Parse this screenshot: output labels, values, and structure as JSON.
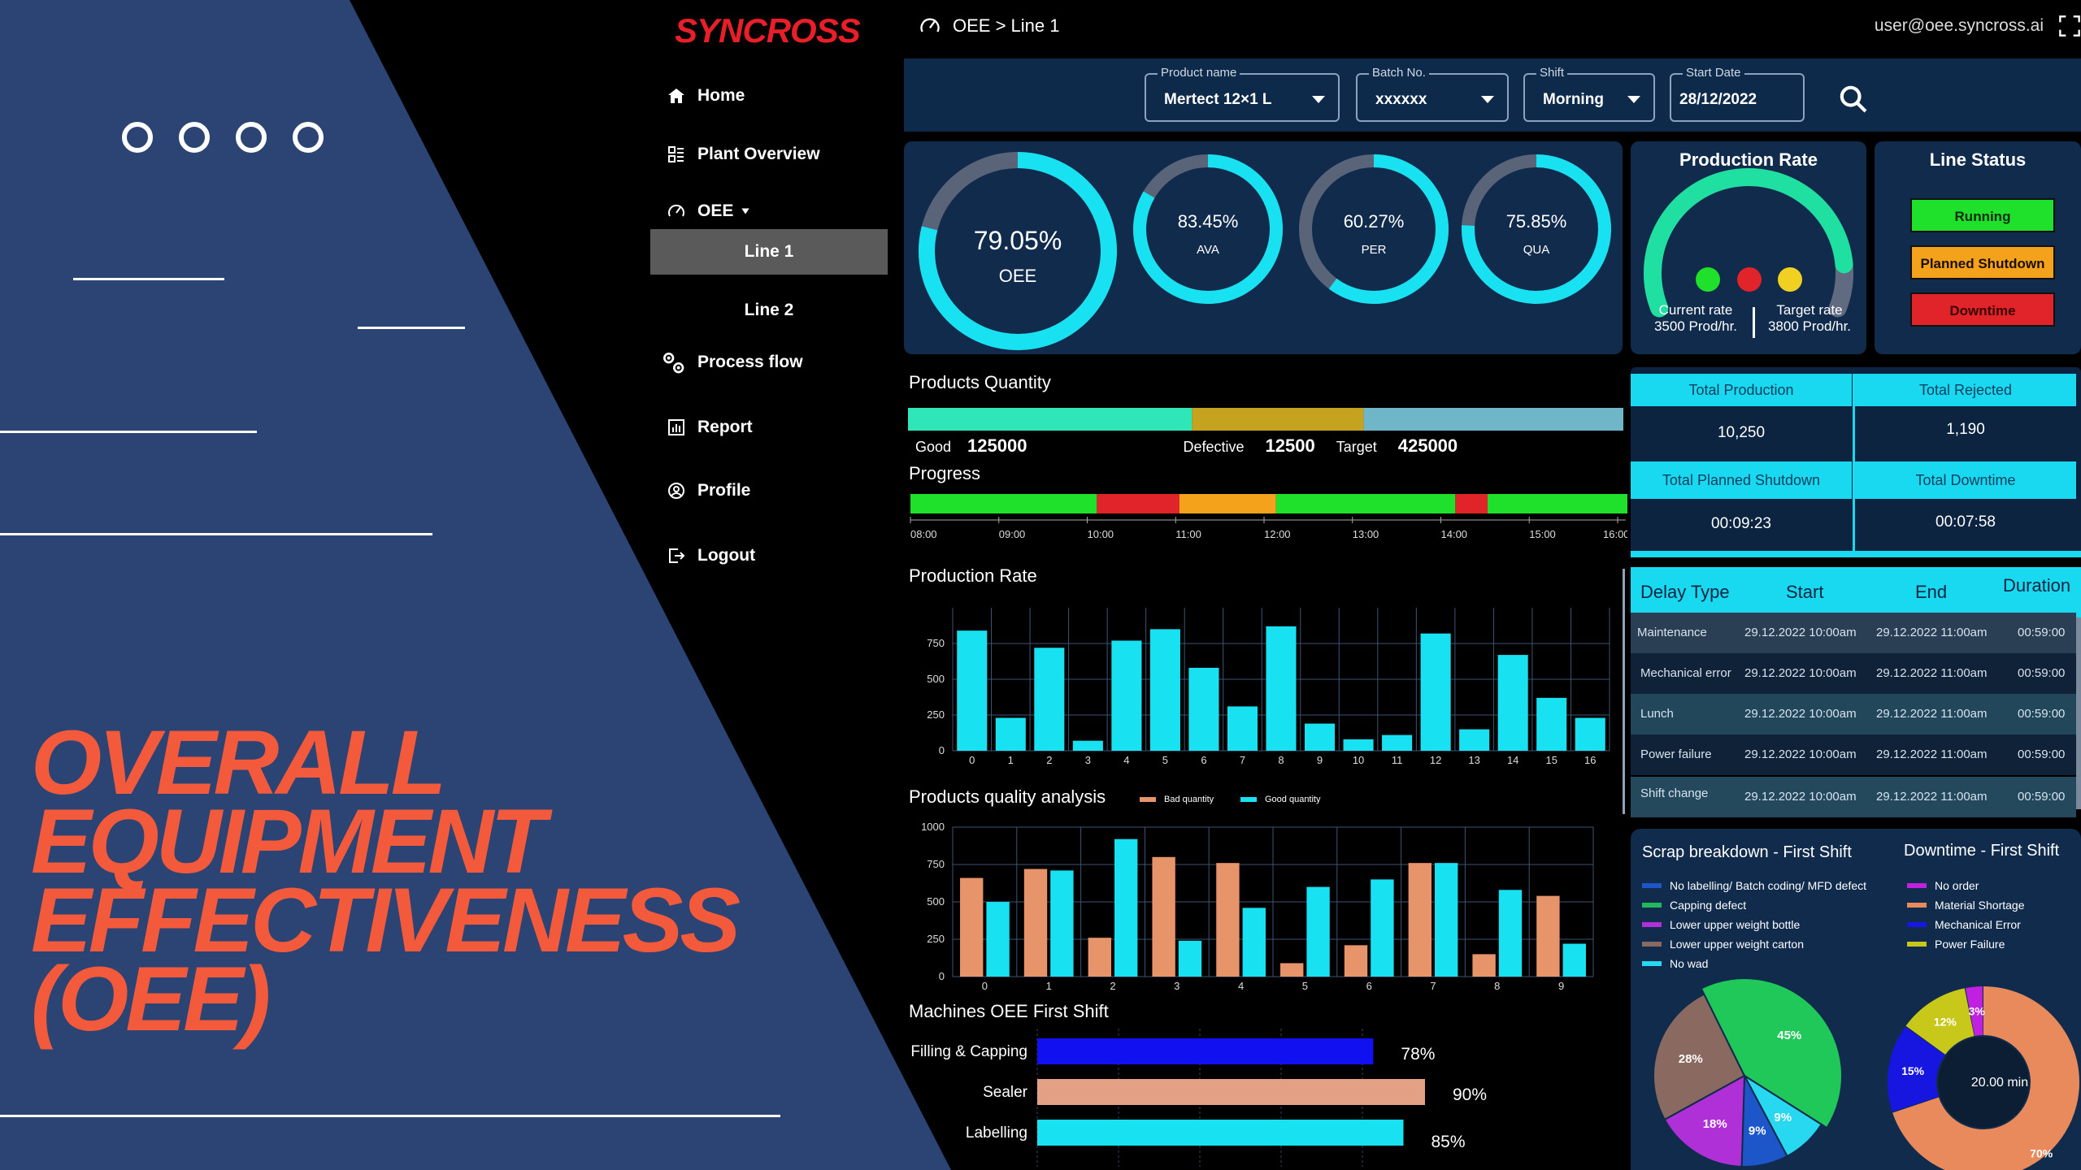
{
  "promo": {
    "title_lines": [
      "OVERALL",
      "EQUIPMENT",
      "EFFECTIVENESS",
      "(OEE)"
    ]
  },
  "brand": {
    "logo_text": "SYNCROSS"
  },
  "sidebar": {
    "items": [
      {
        "label": "Home",
        "icon": "home-icon"
      },
      {
        "label": "Plant Overview",
        "icon": "grid-icon"
      },
      {
        "label": "OEE",
        "icon": "gauge-icon"
      },
      {
        "label": "Process flow",
        "icon": "gears-icon"
      },
      {
        "label": "Report",
        "icon": "chart-icon"
      },
      {
        "label": "Profile",
        "icon": "user-icon"
      },
      {
        "label": "Logout",
        "icon": "logout-icon"
      }
    ],
    "sub_items": [
      "Line 1",
      "Line 2"
    ]
  },
  "header": {
    "breadcrumb": "OEE > Line 1",
    "user_email": "user@oee.syncross.ai"
  },
  "filters": {
    "product": {
      "label": "Product name",
      "value": "Mertect 12×1 L"
    },
    "batch": {
      "label": "Batch No.",
      "value": "xxxxxx"
    },
    "shift": {
      "label": "Shift",
      "value": "Morning"
    },
    "start_date": {
      "label": "Start Date",
      "value": "28/12/2022"
    }
  },
  "kpis": [
    {
      "value": "79.05%",
      "label": "OEE",
      "fraction": 0.7905
    },
    {
      "value": "83.45%",
      "label": "AVA",
      "fraction": 0.8345
    },
    {
      "value": "60.27%",
      "label": "PER",
      "fraction": 0.6027
    },
    {
      "value": "75.85%",
      "label": "QUA",
      "fraction": 0.7585
    }
  ],
  "production_rate": {
    "title": "Production Rate",
    "current_label": "Current rate",
    "current_value": "3500 Prod/hr.",
    "target_label": "Target rate",
    "target_value": "3800 Prod/hr.",
    "fraction": 0.88
  },
  "line_status": {
    "title": "Line Status",
    "items": [
      {
        "label": "Running",
        "color": "#1fe02a"
      },
      {
        "label": "Planned Shutdown",
        "color": "#f4a11c"
      },
      {
        "label": "Downtime",
        "color": "#e0242a"
      }
    ]
  },
  "quantity": {
    "title": "Products Quantity",
    "good_label": "Good",
    "good_value": "125000",
    "defective_label": "Defective",
    "defective_value": "12500",
    "target_label": "Target",
    "target_value": "425000",
    "segments": [
      {
        "fraction": 0.397,
        "color": "#2fe6b8"
      },
      {
        "fraction": 0.24,
        "color": "#c6a31e"
      },
      {
        "fraction": 0.363,
        "color": "#6fb6c8"
      }
    ]
  },
  "progress": {
    "title": "Progress",
    "ticks": [
      "08:00",
      "09:00",
      "10:00",
      "11:00",
      "12:00",
      "13:00",
      "14:00",
      "15:00",
      "16:00"
    ],
    "segments": [
      {
        "fraction": 0.26,
        "color": "#1fe02a"
      },
      {
        "fraction": 0.115,
        "color": "#e0242a"
      },
      {
        "fraction": 0.135,
        "color": "#f4a11c"
      },
      {
        "fraction": 0.25,
        "color": "#1fe02a"
      },
      {
        "fraction": 0.045,
        "color": "#e0242a"
      },
      {
        "fraction": 0.195,
        "color": "#1fe02a"
      }
    ]
  },
  "totals": [
    {
      "label": "Total Production",
      "value": "10,250"
    },
    {
      "label": "Total Rejected",
      "value": "1,190"
    },
    {
      "label": "Total Planned Shutdown",
      "value": "00:09:23"
    },
    {
      "label": "Total Downtime",
      "value": "00:07:58"
    }
  ],
  "delay_table": {
    "headers": [
      "Delay Type",
      "Start",
      "End",
      "Duration"
    ],
    "rows": [
      [
        "Maintenance",
        "29.12.2022 10:00am",
        "29.12.2022 11:00am",
        "00:59:00"
      ],
      [
        "Mechanical error",
        "29.12.2022 10:00am",
        "29.12.2022 11:00am",
        "00:59:00"
      ],
      [
        "Lunch",
        "29.12.2022 10:00am",
        "29.12.2022 11:00am",
        "00:59:00"
      ],
      [
        "Power failure",
        "29.12.2022 10:00am",
        "29.12.2022 11:00am",
        "00:59:00"
      ],
      [
        "Shift change",
        "29.12.2022 10:00am",
        "29.12.2022 11:00am",
        "00:59:00"
      ]
    ]
  },
  "scrap": {
    "title": "Scrap breakdown - First Shift",
    "legend": [
      {
        "label": "No labelling/ Batch coding/ MFD defect",
        "color": "#1d56c9"
      },
      {
        "label": "Capping defect",
        "color": "#20b85a"
      },
      {
        "label": "Lower upper weight bottle",
        "color": "#b030d8"
      },
      {
        "label": "Lower upper weight carton",
        "color": "#8a6a60"
      },
      {
        "label": "No wad",
        "color": "#27d8f0"
      }
    ]
  },
  "downtime": {
    "title": "Downtime - First Shift",
    "center": "20.00 min",
    "legend": [
      {
        "label": "No order",
        "color": "#c020e0"
      },
      {
        "label": "Material Shortage",
        "color": "#e88a5c"
      },
      {
        "label": "Mechanical Error",
        "color": "#1616e0"
      },
      {
        "label": "Power Failure",
        "color": "#c8c81a"
      }
    ]
  },
  "chart_data": [
    {
      "type": "pie",
      "title": "Scrap breakdown - First Shift",
      "categories": [
        "Lower upper weight carton",
        "Capping defect",
        "No wad",
        "No labelling/ Batch coding/ MFD defect",
        "Lower upper weight bottle"
      ],
      "values": [
        28,
        45,
        9,
        9,
        18
      ],
      "labels": [
        "28%",
        "45%",
        "9%",
        "9%",
        "18%"
      ],
      "colors": [
        "#8a6a60",
        "#20c85a",
        "#27d8f0",
        "#1d56c9",
        "#b030d8"
      ]
    },
    {
      "type": "pie",
      "title": "Downtime - First Shift",
      "categories": [
        "Material Shortage",
        "Mechanical Error",
        "Power Failure",
        "No order"
      ],
      "values": [
        70,
        15,
        12,
        3
      ],
      "labels": [
        "70%",
        "15%",
        "12%",
        "3%"
      ],
      "colors": [
        "#e88a5c",
        "#1616e0",
        "#c8c81a",
        "#c020e0"
      ]
    },
    {
      "type": "bar",
      "title": "Production Rate",
      "categories": [
        "0",
        "1",
        "2",
        "3",
        "4",
        "5",
        "6",
        "7",
        "8",
        "9",
        "10",
        "11",
        "12",
        "13",
        "14",
        "15",
        "16"
      ],
      "values": [
        840,
        230,
        720,
        70,
        770,
        850,
        580,
        310,
        870,
        190,
        80,
        110,
        820,
        150,
        670,
        370,
        230
      ],
      "yticks": [
        0,
        250,
        500,
        750
      ],
      "ylim": [
        0,
        1000
      ],
      "color": "#18e2f2"
    },
    {
      "type": "bar",
      "title": "Products quality analysis",
      "categories": [
        "0",
        "1",
        "2",
        "3",
        "4",
        "5",
        "6",
        "7",
        "8",
        "9"
      ],
      "series": [
        {
          "name": "Bad quantity",
          "color": "#e8946a",
          "values": [
            660,
            720,
            260,
            800,
            760,
            90,
            210,
            760,
            150,
            540
          ]
        },
        {
          "name": "Good quantity",
          "color": "#18e2f2",
          "values": [
            500,
            710,
            920,
            240,
            460,
            600,
            650,
            760,
            580,
            220
          ]
        }
      ],
      "yticks": [
        0,
        250,
        500,
        750,
        1000
      ],
      "ylim": [
        0,
        1000
      ]
    },
    {
      "type": "bar",
      "title": "Machines OEE First Shift",
      "categories": [
        "Filling & Capping",
        "Sealer",
        "Labelling"
      ],
      "values": [
        78,
        90,
        85
      ],
      "labels": [
        "78%",
        "90%",
        "85%"
      ],
      "colors": [
        "#1010f0",
        "#e3a084",
        "#18e2f2"
      ]
    }
  ]
}
